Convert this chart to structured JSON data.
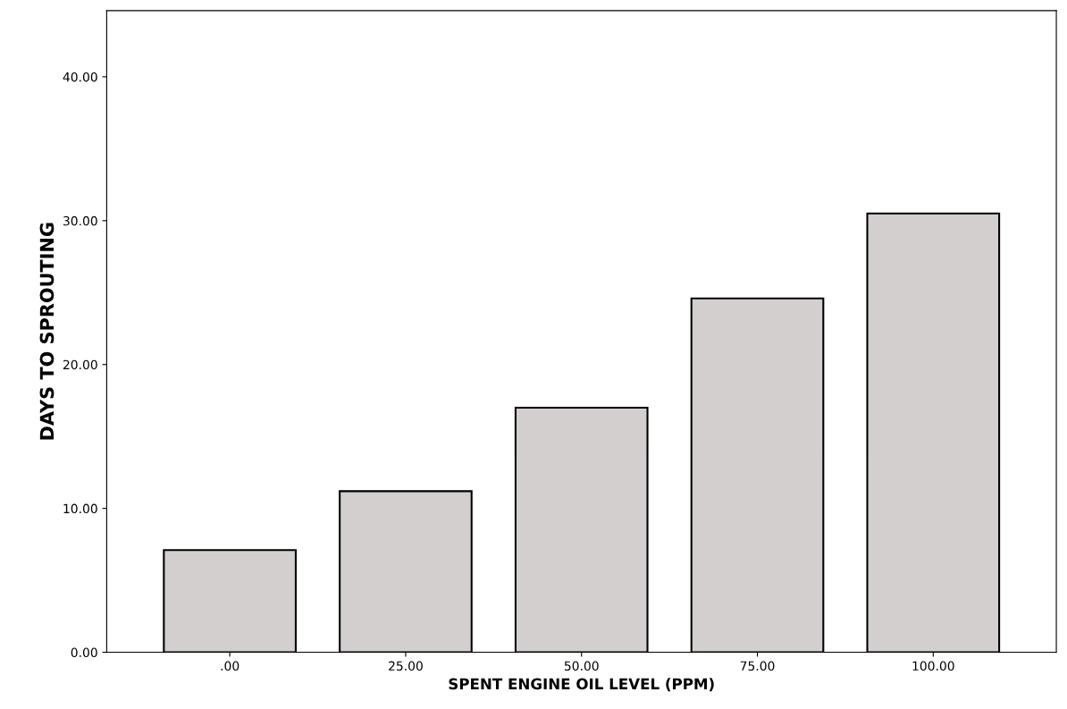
{
  "chart_data": {
    "type": "bar",
    "xlabel": "SPENT ENGINE OIL LEVEL (PPM)",
    "ylabel": "DAYS TO SPROUTING",
    "categories": [
      ".00",
      "25.00",
      "50.00",
      "75.00",
      "100.00"
    ],
    "values": [
      7.1,
      11.2,
      17.0,
      24.6,
      30.5
    ],
    "color": "#d3cfcf",
    "ylim": [
      0,
      44.6
    ],
    "yticks": [
      {
        "value": 0,
        "label": "0.00"
      },
      {
        "value": 10,
        "label": "10.00"
      },
      {
        "value": 20,
        "label": "20.00"
      },
      {
        "value": 30,
        "label": "30.00"
      },
      {
        "value": 40,
        "label": "40.00"
      }
    ],
    "grid": false
  }
}
